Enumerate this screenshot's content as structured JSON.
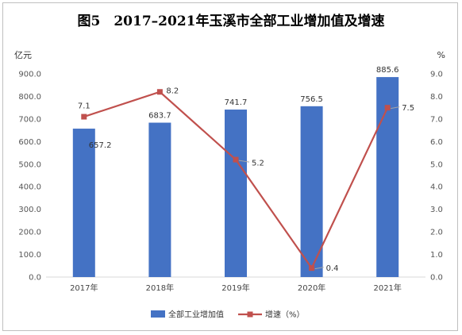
{
  "chart_data": {
    "type": "bar",
    "title": "图5　2017–2021年玉溪市全部工业增加值及增速",
    "y_left_unit": "亿元",
    "y_right_unit": "%",
    "categories": [
      "2017年",
      "2018年",
      "2019年",
      "2020年",
      "2021年"
    ],
    "y_left_ticks": [
      "0.0",
      "100.0",
      "200.0",
      "300.0",
      "400.0",
      "500.0",
      "600.0",
      "700.0",
      "800.0",
      "900.0"
    ],
    "y_right_ticks": [
      "0.0",
      "1.0",
      "2.0",
      "3.0",
      "4.0",
      "5.0",
      "6.0",
      "7.0",
      "8.0",
      "9.0"
    ],
    "ylim_left": [
      0,
      900
    ],
    "ylim_right": [
      0,
      9
    ],
    "series": [
      {
        "name": "全部工业增加值",
        "type": "bar",
        "axis": "left",
        "color": "#4472C4",
        "values": [
          657.2,
          683.7,
          741.7,
          756.5,
          885.6
        ],
        "labels": [
          "657.2",
          "683.7",
          "741.7",
          "756.5",
          "885.6"
        ]
      },
      {
        "name": "增速（%）",
        "type": "line",
        "axis": "right",
        "color": "#C0504D",
        "values": [
          7.1,
          8.2,
          5.2,
          0.4,
          7.5
        ],
        "labels": [
          "7.1",
          "8.2",
          "5.2",
          "0.4",
          "7.5"
        ]
      }
    ],
    "legend": "bottom",
    "grid": false
  }
}
